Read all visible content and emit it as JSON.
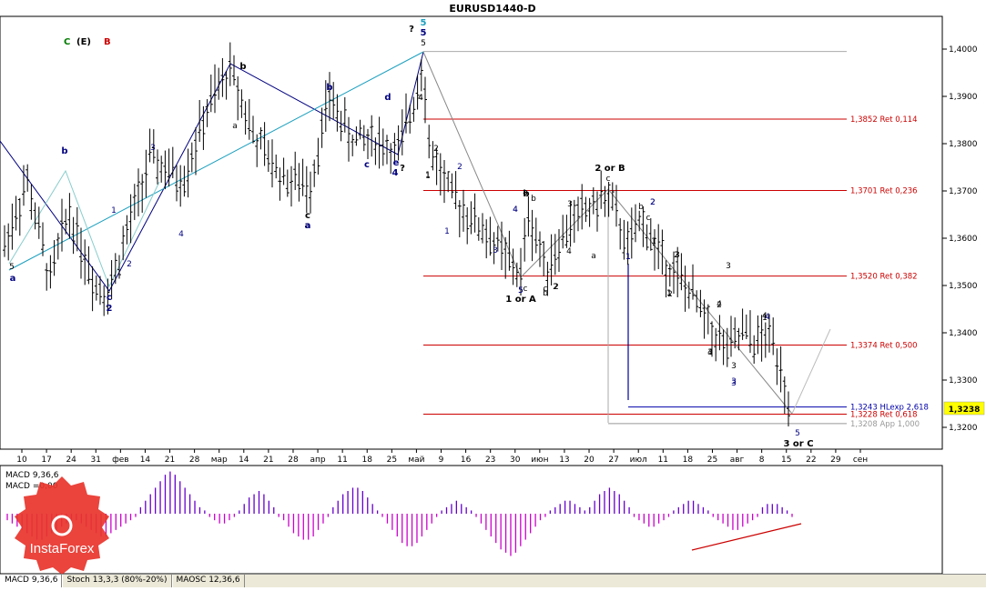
{
  "chart_title": "EURUSD1440-D",
  "wave_legend": [
    {
      "text": "C",
      "color": "#007a00"
    },
    {
      "text": "(E)",
      "color": "#000000"
    },
    {
      "text": "B",
      "color": "#cc0000"
    }
  ],
  "price_badge": "1,3238",
  "brand_text": "InstaForex",
  "tabs": [
    "MACD 9,36,6",
    "Stoch 13,3,3 (80%-20%)",
    "MAOSC 12,36,6"
  ],
  "chart_data": [
    {
      "type": "candlestick",
      "title": "EURUSD1440-D",
      "y_ticks": [
        "1,4000",
        "1,3900",
        "1,3800",
        "1,3700",
        "1,3600",
        "1,3500",
        "1,3400",
        "1,3300",
        "1,3200"
      ],
      "y_tick_values": [
        1.4,
        1.39,
        1.38,
        1.37,
        1.36,
        1.35,
        1.34,
        1.33,
        1.32
      ],
      "ylim": [
        1.3163,
        1.4069
      ],
      "x_ticks": [
        "10",
        "17",
        "24",
        "31",
        "фев",
        "14",
        "21",
        "28",
        "мар",
        "14",
        "21",
        "28",
        "апр",
        "11",
        "18",
        "25",
        "май",
        "9",
        "16",
        "23",
        "30",
        "июн",
        "13",
        "20",
        "27",
        "июл",
        "11",
        "18",
        "25",
        "авг",
        "8",
        "15",
        "22",
        "29",
        "сен"
      ],
      "current_price": 1.3238,
      "fib_levels": [
        {
          "label": "1,3852 Ret 0,114",
          "value": 1.3852,
          "color": "#cc0000"
        },
        {
          "label": "1,3701 Ret 0,236",
          "value": 1.3701,
          "color": "#cc0000"
        },
        {
          "label": "1,3520 Ret 0,382",
          "value": 1.352,
          "color": "#cc0000"
        },
        {
          "label": "1,3374 Ret 0,500",
          "value": 1.3374,
          "color": "#cc0000"
        },
        {
          "label": "1,3243 HLexp 2,618",
          "value": 1.3243,
          "color": "#0000aa"
        },
        {
          "label": "1,3228 Ret 0,618",
          "value": 1.3228,
          "color": "#cc0000"
        },
        {
          "label": "1,3208 App 1,000",
          "value": 1.3208,
          "color": "#999999"
        }
      ],
      "top_level_value": 1.3995,
      "wave_labels": [
        {
          "t": "?",
          "c": "#000000",
          "b": true
        },
        {
          "t": "5",
          "c": "#1a9fbf",
          "b": true
        },
        {
          "t": "5",
          "c": "#000080",
          "b": true
        },
        {
          "t": "?",
          "c": "#000000",
          "b": true
        },
        {
          "t": "2 or B",
          "c": "#000000",
          "b": true
        },
        {
          "t": "c",
          "c": "#000000",
          "b": false
        },
        {
          "t": "1 or A",
          "c": "#000000",
          "b": true
        },
        {
          "t": "3 or C",
          "c": "#000000",
          "b": true
        },
        {
          "t": "5",
          "c": "#000080",
          "b": false
        },
        {
          "t": "3",
          "c": "#000080",
          "b": false
        },
        {
          "t": "5",
          "c": "#000000",
          "b": false
        },
        {
          "t": "b",
          "c": "#000080",
          "b": true
        },
        {
          "t": "c",
          "c": "#000080",
          "b": true
        },
        {
          "t": "2",
          "c": "#000080",
          "b": true
        },
        {
          "t": "a",
          "c": "#000080",
          "b": true
        },
        {
          "t": "b",
          "c": "#000000",
          "b": true
        },
        {
          "t": "a",
          "c": "#000000",
          "b": true
        },
        {
          "t": "b",
          "c": "#000080",
          "b": true
        },
        {
          "t": "c",
          "c": "#000080",
          "b": true
        },
        {
          "t": "d",
          "c": "#000080",
          "b": true
        },
        {
          "t": "e",
          "c": "#000080",
          "b": true
        },
        {
          "t": "4",
          "c": "#000080",
          "b": true
        },
        {
          "t": "a",
          "c": "#000080",
          "b": true
        },
        {
          "t": "c",
          "c": "#000000",
          "b": true
        },
        {
          "t": "3",
          "c": "#000080",
          "b": false
        },
        {
          "t": "1",
          "c": "#000080",
          "b": false
        },
        {
          "t": "2",
          "c": "#000080",
          "b": false
        },
        {
          "t": "4",
          "c": "#000080",
          "b": false
        },
        {
          "t": "1",
          "c": "#000080",
          "b": false
        },
        {
          "t": "2",
          "c": "#000080",
          "b": false
        },
        {
          "t": "3",
          "c": "#000080",
          "b": false
        },
        {
          "t": "4",
          "c": "#000080",
          "b": false
        },
        {
          "t": "5",
          "c": "#000080",
          "b": false
        },
        {
          "t": "1",
          "c": "#000080",
          "b": false
        },
        {
          "t": "2",
          "c": "#000080",
          "b": false
        },
        {
          "t": "b",
          "c": "#000000",
          "b": true
        },
        {
          "t": "c",
          "c": "#000000",
          "b": false
        },
        {
          "t": "a",
          "c": "#000000",
          "b": false
        },
        {
          "t": "b",
          "c": "#000000",
          "b": false
        },
        {
          "t": "b",
          "c": "#000000",
          "b": false
        },
        {
          "t": "a",
          "c": "#000000",
          "b": false
        },
        {
          "t": "4",
          "c": "#000000",
          "b": false
        },
        {
          "t": "5",
          "c": "#000000",
          "b": false
        },
        {
          "t": "1",
          "c": "#000000",
          "b": false
        },
        {
          "t": "2",
          "c": "#000000",
          "b": false
        },
        {
          "t": "3",
          "c": "#000000",
          "b": false
        },
        {
          "t": "4",
          "c": "#000000",
          "b": false
        },
        {
          "t": "a",
          "c": "#000000",
          "b": false
        },
        {
          "t": "b",
          "c": "#000000",
          "b": false
        },
        {
          "t": "c",
          "c": "#000000",
          "b": false
        },
        {
          "t": "1",
          "c": "#000000",
          "b": false
        },
        {
          "t": "2",
          "c": "#000000",
          "b": false
        },
        {
          "t": "3",
          "c": "#000000",
          "b": false
        },
        {
          "t": "4",
          "c": "#000000",
          "b": false
        },
        {
          "t": "2",
          "c": "#000000",
          "b": false
        },
        {
          "t": "3",
          "c": "#000000",
          "b": false
        },
        {
          "t": "1",
          "c": "#000000",
          "b": false
        },
        {
          "t": "3",
          "c": "#000000",
          "b": false
        },
        {
          "t": "4",
          "c": "#000000",
          "b": false
        },
        {
          "t": "1",
          "c": "#000000",
          "b": false
        },
        {
          "t": "2",
          "c": "#000000",
          "b": false
        },
        {
          "t": "3",
          "c": "#000000",
          "b": false
        },
        {
          "t": "4",
          "c": "#000000",
          "b": false
        },
        {
          "t": "4",
          "c": "#000080",
          "b": false
        },
        {
          "t": "3",
          "c": "#000080",
          "b": false
        },
        {
          "t": "1",
          "c": "#000080",
          "b": false
        },
        {
          "t": "2",
          "c": "#000080",
          "b": false
        },
        {
          "t": "4",
          "c": "#000080",
          "b": false
        },
        {
          "t": "5",
          "c": "#000080",
          "b": false
        },
        {
          "t": "2",
          "c": "#000000",
          "b": false
        },
        {
          "t": "1",
          "c": "#000000",
          "b": false
        },
        {
          "t": "4",
          "c": "#000000",
          "b": false
        },
        {
          "t": "a",
          "c": "#000000",
          "b": false
        },
        {
          "t": "2",
          "c": "#000000",
          "b": false
        },
        {
          "t": "1",
          "c": "#000000",
          "b": false
        },
        {
          "t": "c",
          "c": "#000000",
          "b": false
        }
      ]
    },
    {
      "type": "bar",
      "title": "MACD 9,36,6",
      "subtitle": "MACD =0,00",
      "pos_color": "#6600cc",
      "neg_color": "#cc00cc",
      "values": [
        -2,
        -3,
        -4,
        -5,
        -6,
        -7,
        -8,
        -8,
        -7,
        -6,
        -5,
        -4,
        -3,
        -2,
        -2,
        -3,
        -4,
        -5,
        -6,
        -7,
        -7,
        -6,
        -5,
        -4,
        -3,
        -2,
        -1,
        2,
        4,
        6,
        8,
        10,
        12,
        13,
        12,
        10,
        8,
        6,
        4,
        2,
        1,
        -1,
        -2,
        -3,
        -3,
        -2,
        -1,
        1,
        3,
        5,
        6,
        7,
        6,
        4,
        2,
        -1,
        -2,
        -4,
        -6,
        -7,
        -8,
        -8,
        -7,
        -5,
        -3,
        -1,
        2,
        4,
        6,
        7,
        8,
        8,
        7,
        5,
        3,
        1,
        -1,
        -3,
        -5,
        -7,
        -9,
        -10,
        -10,
        -9,
        -7,
        -5,
        -3,
        -1,
        1,
        2,
        3,
        4,
        3,
        2,
        1,
        -1,
        -3,
        -5,
        -7,
        -9,
        -11,
        -12,
        -13,
        -12,
        -10,
        -8,
        -6,
        -4,
        -2,
        -1,
        1,
        2,
        3,
        4,
        4,
        3,
        2,
        1,
        2,
        4,
        6,
        7,
        8,
        7,
        6,
        4,
        2,
        -1,
        -2,
        -3,
        -4,
        -4,
        -3,
        -2,
        -1,
        1,
        2,
        3,
        4,
        4,
        3,
        2,
        1,
        -1,
        -2,
        -3,
        -4,
        -5,
        -5,
        -4,
        -3,
        -2,
        -1,
        2,
        3,
        3,
        3,
        2,
        1,
        -1
      ],
      "ylim": [
        -14,
        14
      ]
    }
  ]
}
